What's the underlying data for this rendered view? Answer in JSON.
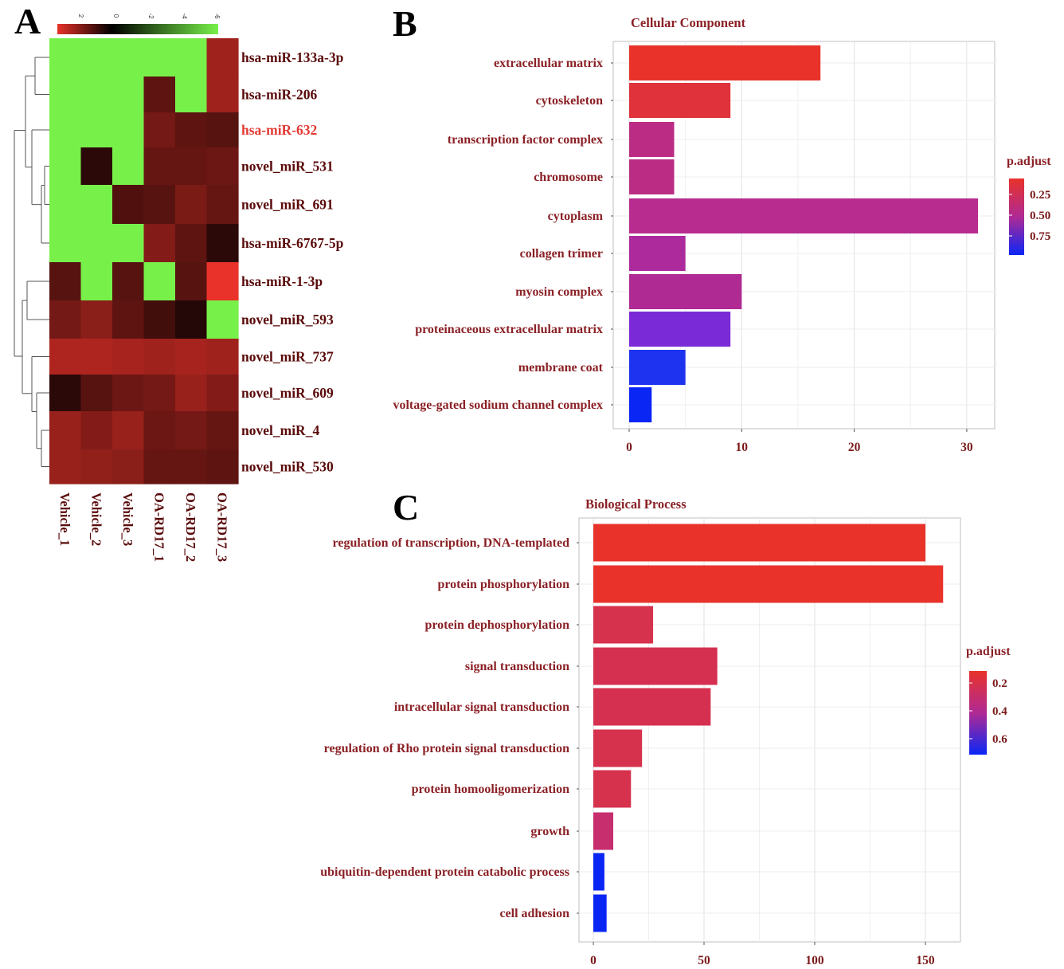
{
  "panels": {
    "A": "A",
    "B": "B",
    "C": "C"
  },
  "chart_data": [
    {
      "type": "heatmap",
      "panel": "A",
      "color_scale": {
        "ticks": [
          "2",
          "0",
          "-2",
          "-4",
          "-6"
        ],
        "colors": [
          "#e8322a",
          "#000000",
          "#78f04a"
        ]
      },
      "columns": [
        "Vehicle_1",
        "Vehicle_2",
        "Vehicle_3",
        "OA-RD17_1",
        "OA-RD17_2",
        "OA-RD17_3"
      ],
      "rows": [
        {
          "name": "hsa-miR-133a-3p",
          "values": [
            -6,
            -6,
            -6,
            -6,
            -6,
            2.2
          ],
          "highlight": false
        },
        {
          "name": "hsa-miR-206",
          "values": [
            -6,
            -6,
            -6,
            1.3,
            -6,
            2.2
          ],
          "highlight": false
        },
        {
          "name": "hsa-miR-632",
          "values": [
            -6,
            -6,
            -6,
            1.6,
            1.3,
            1.2
          ],
          "highlight": true
        },
        {
          "name": "novel_miR_531",
          "values": [
            -6,
            0.6,
            -6,
            1.4,
            1.4,
            1.5
          ],
          "highlight": false
        },
        {
          "name": "novel_miR_691",
          "values": [
            -6,
            -6,
            1.1,
            1.2,
            1.7,
            1.4
          ],
          "highlight": false
        },
        {
          "name": "hsa-miR-6767-5p",
          "values": [
            -6,
            -6,
            -6,
            1.8,
            1.3,
            0.6
          ],
          "highlight": false
        },
        {
          "name": "hsa-miR-1-3p",
          "values": [
            1.2,
            -6,
            1.2,
            -6,
            1.2,
            3.2
          ],
          "highlight": false
        },
        {
          "name": "novel_miR_593",
          "values": [
            1.6,
            1.9,
            1.3,
            0.9,
            0.5,
            -6
          ],
          "highlight": false
        },
        {
          "name": "novel_miR_737",
          "values": [
            2.4,
            2.4,
            2.3,
            2.2,
            2.3,
            2.2
          ],
          "highlight": false
        },
        {
          "name": "novel_miR_609",
          "values": [
            0.6,
            1.2,
            1.5,
            1.6,
            2.1,
            1.8
          ],
          "highlight": false
        },
        {
          "name": "novel_miR_4",
          "values": [
            2.1,
            1.8,
            2.1,
            1.5,
            1.6,
            1.4
          ],
          "highlight": false
        },
        {
          "name": "novel_miR_530",
          "values": [
            2.1,
            2.0,
            1.9,
            1.4,
            1.4,
            1.3
          ],
          "highlight": false
        }
      ]
    },
    {
      "type": "bar",
      "panel": "B",
      "orientation": "horizontal",
      "title": "Cellular Component",
      "categories": [
        "extracellular matrix",
        "cytoskeleton",
        "transcription factor complex",
        "chromosome",
        "cytoplasm",
        "collagen trimer",
        "myosin complex",
        "proteinaceous extracellular matrix",
        "membrane coat",
        "voltage-gated sodium channel complex"
      ],
      "values": [
        17,
        9,
        4,
        4,
        31,
        5,
        10,
        9,
        5,
        2
      ],
      "bar_colors": [
        "#e8322a",
        "#e0323a",
        "#bb2d85",
        "#bb2d85",
        "#b72c8e",
        "#ad2a9d",
        "#b02a94",
        "#7a2ad6",
        "#1e33f0",
        "#0a26f5"
      ],
      "xlim": [
        0,
        32
      ],
      "xticks": [
        0,
        10,
        20,
        30
      ],
      "legend": {
        "title": "p.adjust",
        "ticks": [
          "0.25",
          "0.50",
          "0.75"
        ],
        "position": "right"
      }
    },
    {
      "type": "bar",
      "panel": "C",
      "orientation": "horizontal",
      "title": "Biological Process",
      "categories": [
        "regulation of transcription, DNA-templated",
        "protein phosphorylation",
        "protein dephosphorylation",
        "signal transduction",
        "intracellular signal transduction",
        "regulation of Rho protein signal transduction",
        "protein homooligomerization",
        "growth",
        "ubiquitin-dependent protein catabolic process",
        "cell adhesion"
      ],
      "values": [
        150,
        158,
        27,
        56,
        53,
        22,
        17,
        9,
        5,
        6
      ],
      "bar_colors": [
        "#e8322a",
        "#e8322a",
        "#d6314d",
        "#d53050",
        "#d53050",
        "#d6314d",
        "#d6314d",
        "#c62e6e",
        "#0a26f5",
        "#0a26f5"
      ],
      "xlim": [
        0,
        163
      ],
      "xticks": [
        0,
        50,
        100,
        150
      ],
      "legend": {
        "title": "p.adjust",
        "ticks": [
          "0.2",
          "0.4",
          "0.6"
        ],
        "position": "right"
      }
    }
  ]
}
